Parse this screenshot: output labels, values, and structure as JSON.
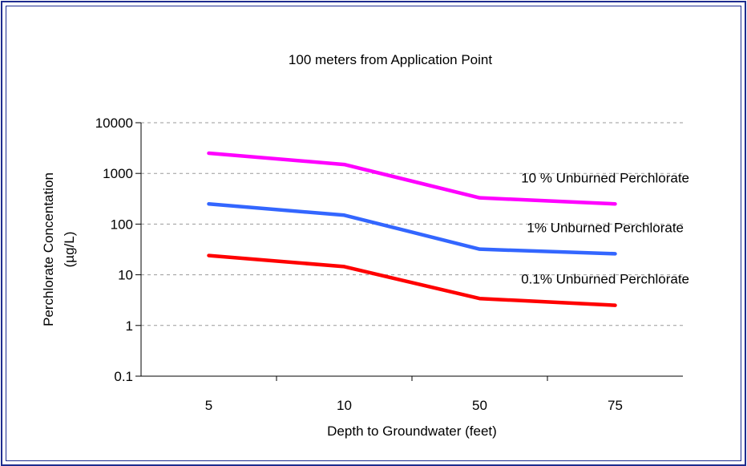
{
  "chart_data": {
    "type": "line",
    "title": "100 meters from Application Point",
    "xlabel": "Depth to Groundwater (feet)",
    "ylabel_line1": "Perchlorate Concentation",
    "ylabel_line2": "(µg/L)",
    "categories": [
      "5",
      "10",
      "50",
      "75"
    ],
    "y_scale": "log",
    "ylim": [
      0.1,
      10000
    ],
    "y_ticks": [
      "0.1",
      "1",
      "10",
      "100",
      "1000",
      "10000"
    ],
    "grid": true,
    "series": [
      {
        "name": "10 % Unburned Perchlorate",
        "color": "#ff00ff",
        "values": [
          2500,
          1500,
          330,
          250
        ]
      },
      {
        "name": "1% Unburned Perchlorate",
        "color": "#3366ff",
        "values": [
          250,
          150,
          32,
          26
        ]
      },
      {
        "name": "0.1% Unburned Perchlorate",
        "color": "#ff0000",
        "values": [
          24,
          14.5,
          3.4,
          2.5
        ]
      }
    ]
  }
}
